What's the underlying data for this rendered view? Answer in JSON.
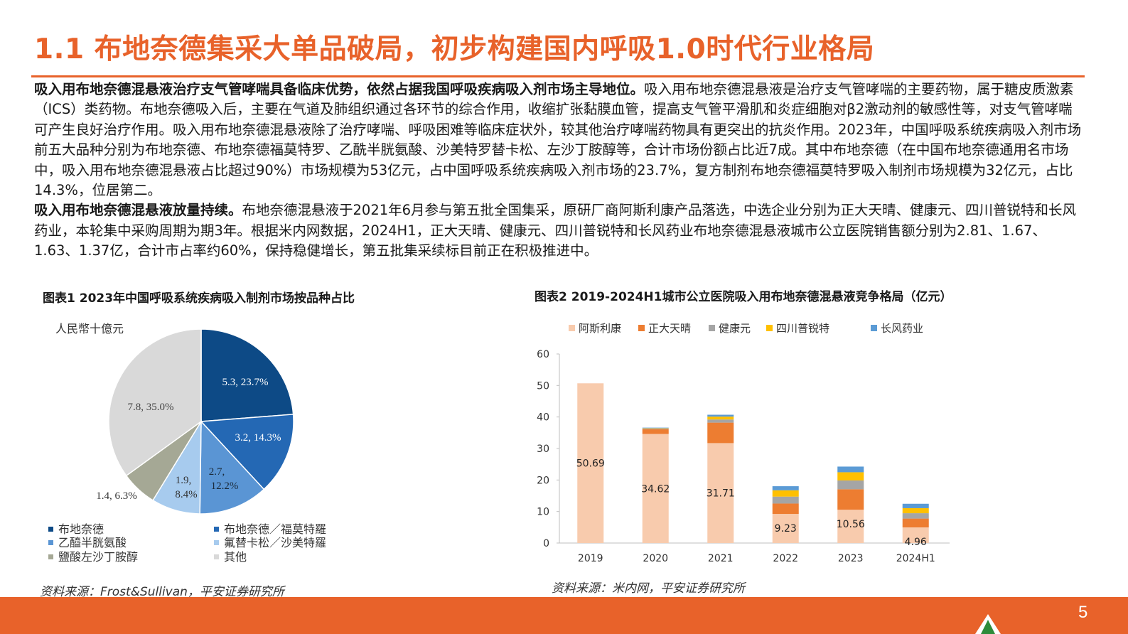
{
  "page": {
    "title": "1.1 布地奈德集采大单品破局，初步构建国内呼吸1.0时代行业格局",
    "page_number": "5"
  },
  "body": {
    "p1_bold": "吸入用布地奈德混悬液治疗支气管哮喘具备临床优势，依然占据我国呼吸疾病吸入剂市场主导地位。",
    "p1_text": "吸入用布地奈德混悬液是治疗支气管哮喘的主要药物，属于糖皮质激素（ICS）类药物。布地奈德吸入后，主要在气道及肺组织通过各环节的综合作用，收缩扩张黏膜血管，提高支气管平滑肌和炎症细胞对β2激动剂的敏感性等，对支气管哮喘可产生良好治疗作用。吸入用布地奈德混悬液除了治疗哮喘、呼吸困难等临床症状外，较其他治疗哮喘药物具有更突出的抗炎作用。2023年，中国呼吸系统疾病吸入剂市场前五大品种分别为布地奈德、布地奈德福莫特罗、乙酰半胱氨酸、沙美特罗替卡松、左沙丁胺醇等，合计市场份额占比近7成。其中布地奈德（在中国布地奈德通用名市场中，吸入用布地奈德混悬液占比超过90%）市场规模为53亿元，占中国呼吸系统疾病吸入剂市场的23.7%，复方制剂布地奈德福莫特罗吸入制剂市场规模为32亿元，占比14.3%，位居第二。",
    "p2_bold": "吸入用布地奈德混悬液放量持续。",
    "p2_text": "布地奈德混悬液于2021年6月参与第五批全国集采，原研厂商阿斯利康产品落选，中选企业分别为正大天晴、健康元、四川普锐特和长风药业，本轮集中采购周期为期3年。根据米内网数据，2024H1，正大天晴、健康元、四川普锐特和长风药业布地奈德混悬液城市公立医院销售额分别为2.81、1.67、1.63、1.37亿，合计市占率约60%，保持稳健增长，第五批集采续标目前正在积极推进中。"
  },
  "figure1": {
    "title": "图表1 2023年中国呼吸系统疾病吸入制剂市场按品种占比",
    "unit": "人民幣十億元",
    "source": "资料来源：Frost&Sullivan，平安证券研究所",
    "legend": [
      "布地奈德",
      "布地奈德／福莫特羅",
      "乙醯半胱氨酸",
      "氟替卡松／沙美特羅",
      "鹽酸左沙丁胺醇",
      "其他"
    ],
    "slice_labels": [
      "5.3, 23.7%",
      "3.2, 14.3%",
      "2.7,",
      "12.2%",
      "1.9,",
      "8.4%",
      "1.4, 6.3%",
      "7.8, 35.0%"
    ]
  },
  "figure2": {
    "title": "图表2 2019-2024H1城市公立医院吸入用布地奈德混悬液竞争格局（亿元）",
    "source": "资料来源：米内网，平安证券研究所"
  },
  "chart_data": [
    {
      "type": "pie",
      "title": "图表1 2023年中国呼吸系统疾病吸入制剂市场按品种占比",
      "unit": "人民幣十億元",
      "categories": [
        "布地奈德",
        "布地奈德／福莫特羅",
        "乙醯半胱氨酸",
        "氟替卡松／沙美特羅",
        "鹽酸左沙丁胺醇",
        "其他"
      ],
      "values": [
        5.3,
        3.2,
        2.7,
        1.9,
        1.4,
        7.8
      ],
      "percents": [
        23.7,
        14.3,
        12.2,
        8.4,
        6.3,
        35.0
      ],
      "colors": [
        "#0d4a86",
        "#2468b4",
        "#5a95d4",
        "#a7cbee",
        "#a5a895",
        "#d9d9d9"
      ],
      "legend": "bottom"
    },
    {
      "type": "bar",
      "stacked": true,
      "title": "图表2 2019-2024H1城市公立医院吸入用布地奈德混悬液竞争格局（亿元）",
      "categories": [
        "2019",
        "2020",
        "2021",
        "2022",
        "2023",
        "2024H1"
      ],
      "series": [
        {
          "name": "阿斯利康",
          "color": "#f8cbad",
          "values": [
            50.69,
            34.62,
            31.71,
            9.23,
            10.56,
            4.96
          ],
          "labels": [
            "50.69",
            "34.62",
            "31.71",
            "9.23",
            "10.56",
            "4.96"
          ]
        },
        {
          "name": "正大天晴",
          "color": "#ed7d31",
          "values": [
            0,
            1.5,
            6.5,
            3.3,
            6.5,
            2.8
          ]
        },
        {
          "name": "健康元",
          "color": "#a5a5a5",
          "values": [
            0,
            0.3,
            1.0,
            2.2,
            2.8,
            1.7
          ]
        },
        {
          "name": "四川普锐特",
          "color": "#ffc000",
          "values": [
            0,
            0.1,
            0.9,
            2.0,
            2.6,
            1.6
          ]
        },
        {
          "name": "长风药业",
          "color": "#5b9bd5",
          "values": [
            0,
            0.1,
            0.6,
            1.3,
            1.8,
            1.4
          ]
        }
      ],
      "ylim": [
        0,
        60
      ],
      "yticks": [
        0,
        10,
        20,
        30,
        40,
        50,
        60
      ],
      "legend": "top",
      "grid": false
    }
  ]
}
